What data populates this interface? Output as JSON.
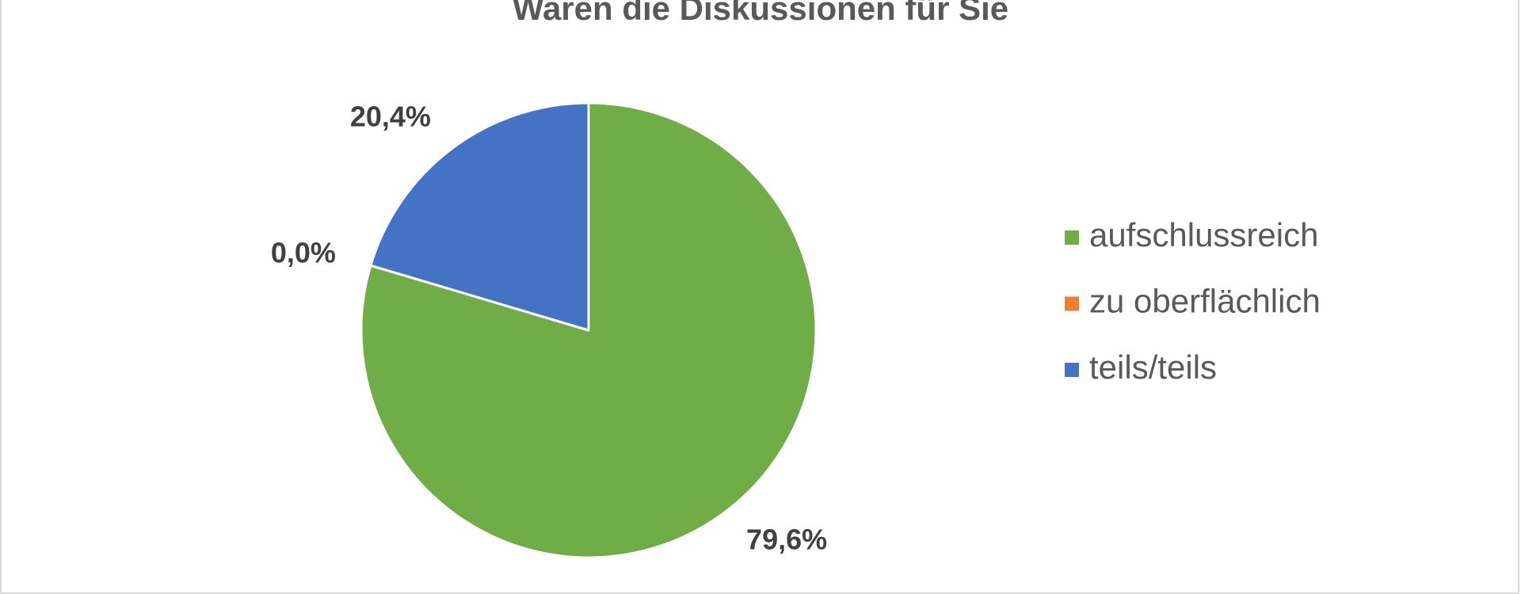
{
  "chart_data": {
    "type": "pie",
    "title": "Waren die Diskussionen für Sie",
    "categories": [
      "aufschlussreich",
      "zu oberflächlich",
      "teils/teils"
    ],
    "values": [
      79.6,
      0,
      20.4
    ],
    "value_labels": [
      "79,6%",
      "0,0%",
      "20,4%"
    ],
    "colors": [
      "#70ad47",
      "#ed7d31",
      "#4472c4"
    ],
    "legend": "right"
  }
}
